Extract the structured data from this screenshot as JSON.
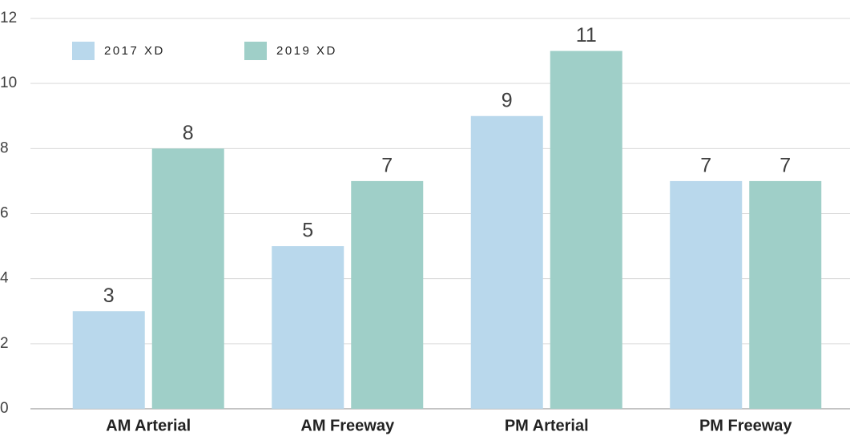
{
  "chart_data": {
    "type": "bar",
    "categories": [
      "AM Arterial",
      "AM Freeway",
      "PM Arterial",
      "PM Freeway"
    ],
    "series": [
      {
        "name": "2017 XD",
        "color": "#b9d8ec",
        "values": [
          3,
          5,
          9,
          7
        ]
      },
      {
        "name": "2019 XD",
        "color": "#9fcfc8",
        "values": [
          8,
          7,
          11,
          7
        ]
      }
    ],
    "ylim": [
      0,
      12
    ],
    "yticks": [
      0,
      2,
      4,
      6,
      8,
      10,
      12
    ],
    "grid": true,
    "legend": "top-left"
  }
}
